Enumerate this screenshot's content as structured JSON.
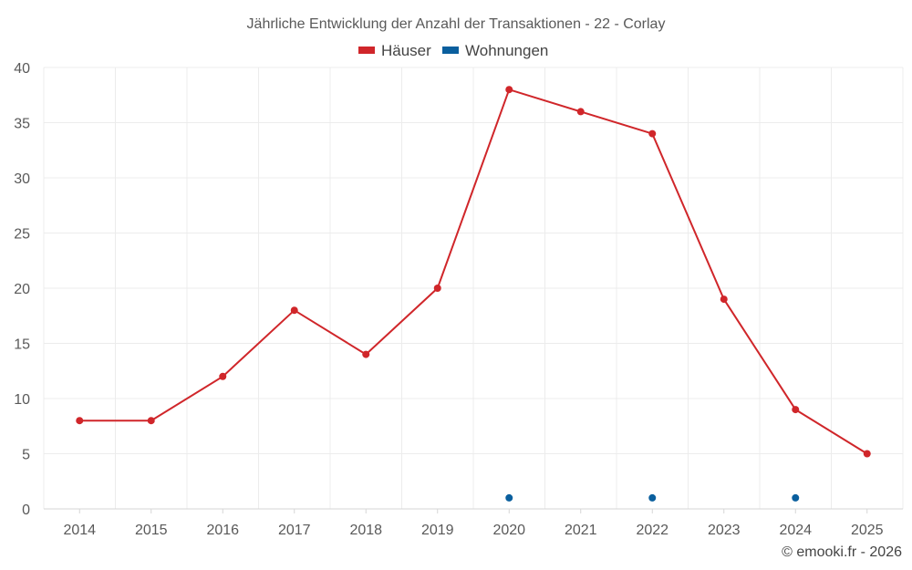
{
  "chart_data": {
    "type": "line",
    "title": "Jährliche Entwicklung der Anzahl der Transaktionen - 22 - Corlay",
    "categories": [
      "2014",
      "2015",
      "2016",
      "2017",
      "2018",
      "2019",
      "2020",
      "2021",
      "2022",
      "2023",
      "2024",
      "2025"
    ],
    "series": [
      {
        "name": "Häuser",
        "color": "#d0262a",
        "values": [
          8,
          8,
          12,
          18,
          14,
          20,
          38,
          36,
          34,
          19,
          9,
          5
        ]
      },
      {
        "name": "Wohnungen",
        "color": "#0a5f9e",
        "values": [
          null,
          null,
          null,
          null,
          null,
          null,
          1,
          null,
          1,
          null,
          1,
          null
        ]
      }
    ],
    "ylim": [
      0,
      40
    ],
    "yticks": [
      0,
      5,
      10,
      15,
      20,
      25,
      30,
      35,
      40
    ],
    "grid": true,
    "legend_position": "top-center",
    "xlabel": "",
    "ylabel": ""
  },
  "footer": "© emooki.fr - 2026"
}
